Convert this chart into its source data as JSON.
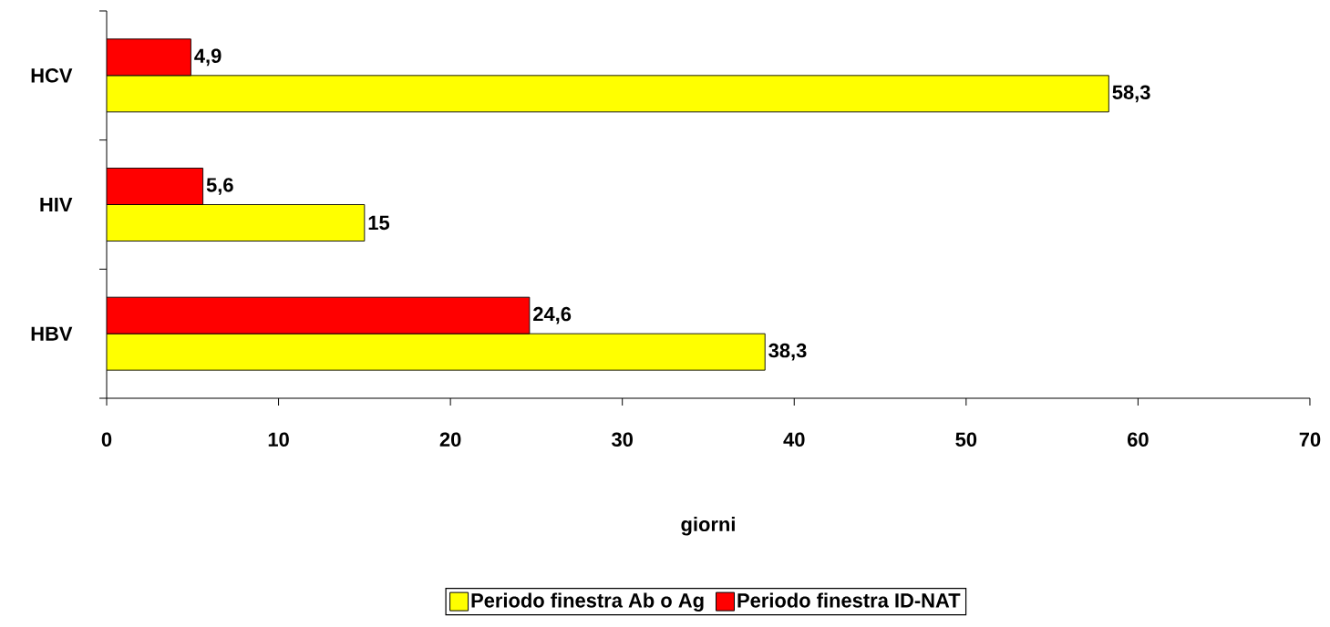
{
  "chart_data": {
    "type": "bar",
    "orientation": "horizontal",
    "xlabel": "giorni",
    "categories": [
      "HCV",
      "HIV",
      "HBV"
    ],
    "series": [
      {
        "name": "Periodo finestra Ab o Ag",
        "color": "#ffff00",
        "values": [
          58.3,
          15,
          38.3
        ],
        "value_labels": [
          "58,3",
          "15",
          "38,3"
        ]
      },
      {
        "name": "Periodo finestra ID-NAT",
        "color": "#ff0000",
        "values": [
          4.9,
          5.6,
          24.6
        ],
        "value_labels": [
          "4,9",
          "5,6",
          "24,6"
        ]
      }
    ],
    "xlim": [
      0,
      70
    ],
    "xticks": [
      0,
      10,
      20,
      30,
      40,
      50,
      60,
      70
    ],
    "grid": false,
    "legend": "bottom"
  }
}
